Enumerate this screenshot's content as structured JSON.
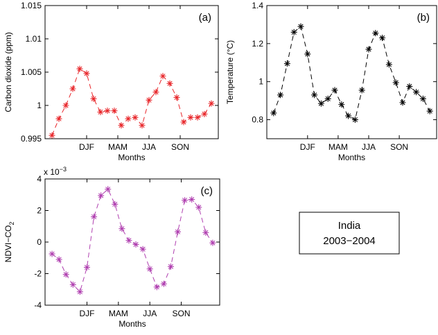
{
  "chart_data": [
    {
      "type": "line",
      "panel_label": "(a)",
      "ylabel": "Carbon dioxide (ppm)",
      "xlabel": "Months",
      "x": [
        1,
        2,
        3,
        4,
        5,
        6,
        7,
        8,
        9,
        10,
        11,
        12,
        13,
        14,
        15,
        16,
        17,
        18,
        19,
        20,
        21,
        22,
        23,
        24
      ],
      "series": [
        {
          "color": "#e8262a",
          "values": [
            0.9955,
            0.998,
            1.0,
            1.0025,
            1.0055,
            1.0048,
            1.001,
            0.999,
            0.9992,
            0.9992,
            0.997,
            0.998,
            0.9982,
            0.997,
            1.0008,
            1.002,
            1.0044,
            1.0033,
            1.0012,
            0.9975,
            0.9982,
            0.9982,
            0.9987,
            1.0003
          ]
        }
      ],
      "xlim": [
        0,
        25
      ],
      "xticks": [
        {
          "value": 6,
          "label": "DJF"
        },
        {
          "value": 10.5,
          "label": "MAM"
        },
        {
          "value": 15,
          "label": "JJA"
        },
        {
          "value": 19.5,
          "label": "SON"
        }
      ],
      "ylim": [
        0.995,
        1.015
      ],
      "yticks": [
        0.995,
        1,
        1.005,
        1.01,
        1.015
      ]
    },
    {
      "type": "line",
      "panel_label": "(b)",
      "ylabel": "Temperature (°C)",
      "xlabel": "Months",
      "x": [
        1,
        2,
        3,
        4,
        5,
        6,
        7,
        8,
        9,
        10,
        11,
        12,
        13,
        14,
        15,
        16,
        17,
        18,
        19,
        20,
        21,
        22,
        23,
        24
      ],
      "series": [
        {
          "color": "#000000",
          "values": [
            0.835,
            0.93,
            1.095,
            1.26,
            1.29,
            1.145,
            0.93,
            0.885,
            0.91,
            0.955,
            0.88,
            0.82,
            0.8,
            0.955,
            1.17,
            1.255,
            1.23,
            1.09,
            0.995,
            0.89,
            0.975,
            0.945,
            0.91,
            0.845
          ]
        }
      ],
      "xlim": [
        0,
        25
      ],
      "xticks": [
        {
          "value": 6,
          "label": "DJF"
        },
        {
          "value": 10.5,
          "label": "MAM"
        },
        {
          "value": 15,
          "label": "JJA"
        },
        {
          "value": 19.5,
          "label": "SON"
        }
      ],
      "ylim": [
        0.7,
        1.4
      ],
      "yticks": [
        0.8,
        1,
        1.2,
        1.4
      ]
    },
    {
      "type": "line",
      "panel_label": "(c)",
      "ylabel": "NDVI−CO",
      "ylabel_subscript": "2",
      "xlabel": "Months",
      "y_multiplier": "x 10",
      "y_multiplier_exponent": "−3",
      "x": [
        1,
        2,
        3,
        4,
        5,
        6,
        7,
        8,
        9,
        10,
        11,
        12,
        13,
        14,
        15,
        16,
        17,
        18,
        19,
        20,
        21,
        22,
        23,
        24
      ],
      "series": [
        {
          "color": "#b040b0",
          "values": [
            -0.75,
            -1.1,
            -2.05,
            -2.7,
            -3.15,
            -1.6,
            1.6,
            2.95,
            3.35,
            2.4,
            0.85,
            0.1,
            -0.15,
            -0.45,
            -1.7,
            -2.85,
            -2.65,
            -1.55,
            0.65,
            2.65,
            2.7,
            2.2,
            0.6,
            -0.05
          ]
        }
      ],
      "xlim": [
        0,
        25
      ],
      "xticks": [
        {
          "value": 6,
          "label": "DJF"
        },
        {
          "value": 10.5,
          "label": "MAM"
        },
        {
          "value": 15,
          "label": "JJA"
        },
        {
          "value": 19.5,
          "label": "SON"
        }
      ],
      "ylim": [
        -4,
        4
      ],
      "yticks": [
        -4,
        -2,
        0,
        2,
        4
      ]
    }
  ],
  "info_box": [
    "India",
    "2003−2004"
  ]
}
